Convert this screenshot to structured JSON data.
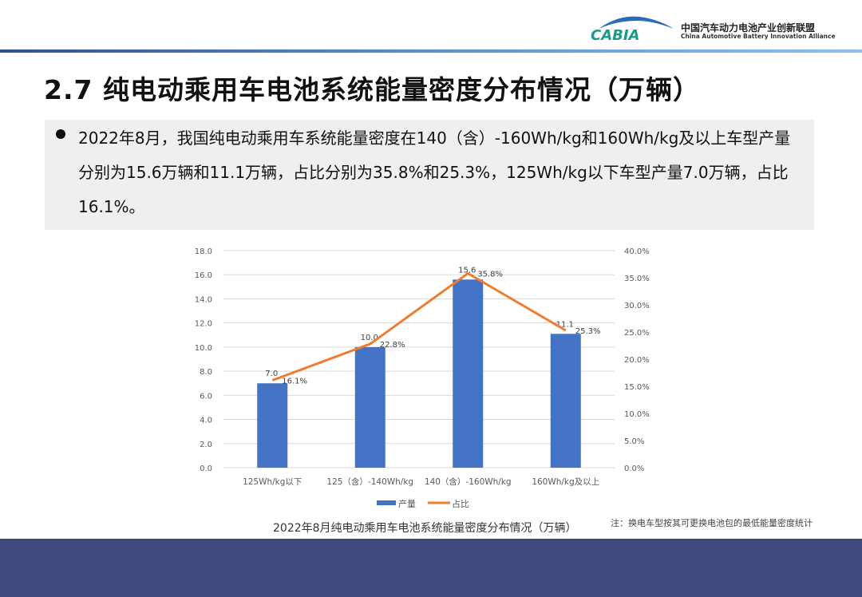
{
  "header": {
    "logo_text": "CABIA",
    "org_cn": "中国汽车动力电池产业创新联盟",
    "org_en": "China Automotive Battery Innovation Alliance"
  },
  "title": "2.7 纯电动乘用车电池系统能量密度分布情况（万辆）",
  "summary": "2022年8月，我国纯电动乘用车系统能量密度在140（含）-160Wh/kg和160Wh/kg及以上车型产量分别为15.6万辆和11.1万辆，占比分别为35.8%和25.3%，125Wh/kg以下车型产量7.0万辆，占比16.1%。",
  "chart_data": {
    "type": "bar",
    "title": "2022年8月纯电动乘用车电池系统能量密度分布情况（万辆）",
    "categories": [
      "125Wh/kg以下",
      "125（含）-140Wh/kg",
      "140（含）-160Wh/kg",
      "160Wh/kg及以上"
    ],
    "series": [
      {
        "name": "产量",
        "type": "bar",
        "axis": "left",
        "values": [
          7.0,
          10.0,
          15.6,
          11.1
        ],
        "labels": [
          "7.0",
          "10.0",
          "15.6",
          "11.1"
        ],
        "color": "#4472c4"
      },
      {
        "name": "占比",
        "type": "line",
        "axis": "right",
        "values": [
          16.1,
          22.8,
          35.8,
          25.3
        ],
        "labels": [
          "16.1%",
          "22.8%",
          "35.8%",
          "25.3%"
        ],
        "color": "#ed7d31"
      }
    ],
    "ylim": [
      0,
      18
    ],
    "yticks": [
      "0.0",
      "2.0",
      "4.0",
      "6.0",
      "8.0",
      "10.0",
      "12.0",
      "14.0",
      "16.0",
      "18.0"
    ],
    "y2lim": [
      0,
      40
    ],
    "y2ticks": [
      "0.0%",
      "5.0%",
      "10.0%",
      "15.0%",
      "20.0%",
      "25.0%",
      "30.0%",
      "35.0%",
      "40.0%"
    ],
    "legend": "bottom",
    "grid": true
  },
  "note": "注：换电车型按其可更换电池包的最低能量密度统计"
}
